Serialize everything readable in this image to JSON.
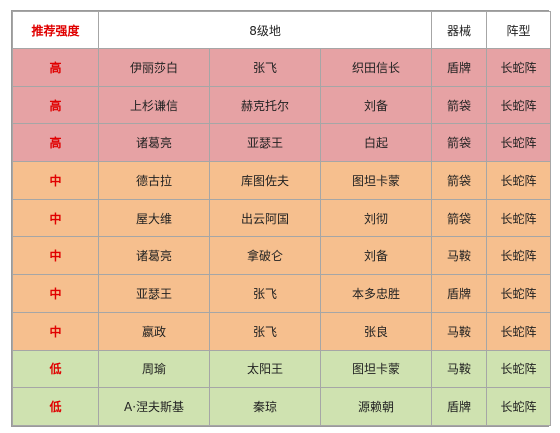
{
  "header": {
    "rank": "推荐强度",
    "level": "8级地",
    "equipment": "器械",
    "formation": "阵型"
  },
  "colors": {
    "high": "#e6a2a4",
    "mid": "#f6bf8e",
    "low": "#cfe2b0",
    "rank_text": "#e00000"
  },
  "rows": [
    {
      "tier": "high",
      "rank": "高",
      "h1": "伊丽莎白",
      "h2": "张飞",
      "h3": "织田信长",
      "equipment": "盾牌",
      "formation": "长蛇阵"
    },
    {
      "tier": "high",
      "rank": "高",
      "h1": "上杉谦信",
      "h2": "赫克托尔",
      "h3": "刘备",
      "equipment": "箭袋",
      "formation": "长蛇阵"
    },
    {
      "tier": "high",
      "rank": "高",
      "h1": "诸葛亮",
      "h2": "亚瑟王",
      "h3": "白起",
      "equipment": "箭袋",
      "formation": "长蛇阵"
    },
    {
      "tier": "mid",
      "rank": "中",
      "h1": "德古拉",
      "h2": "库图佐夫",
      "h3": "图坦卡蒙",
      "equipment": "箭袋",
      "formation": "长蛇阵"
    },
    {
      "tier": "mid",
      "rank": "中",
      "h1": "屋大维",
      "h2": "出云阿国",
      "h3": "刘彻",
      "equipment": "箭袋",
      "formation": "长蛇阵"
    },
    {
      "tier": "mid",
      "rank": "中",
      "h1": "诸葛亮",
      "h2": "拿破仑",
      "h3": "刘备",
      "equipment": "马鞍",
      "formation": "长蛇阵"
    },
    {
      "tier": "mid",
      "rank": "中",
      "h1": "亚瑟王",
      "h2": "张飞",
      "h3": "本多忠胜",
      "equipment": "盾牌",
      "formation": "长蛇阵"
    },
    {
      "tier": "mid",
      "rank": "中",
      "h1": "嬴政",
      "h2": "张飞",
      "h3": "张良",
      "equipment": "马鞍",
      "formation": "长蛇阵"
    },
    {
      "tier": "low",
      "rank": "低",
      "h1": "周瑜",
      "h2": "太阳王",
      "h3": "图坦卡蒙",
      "equipment": "马鞍",
      "formation": "长蛇阵"
    },
    {
      "tier": "low",
      "rank": "低",
      "h1": "A·涅夫斯基",
      "h2": "秦琼",
      "h3": "源赖朝",
      "equipment": "盾牌",
      "formation": "长蛇阵"
    }
  ]
}
